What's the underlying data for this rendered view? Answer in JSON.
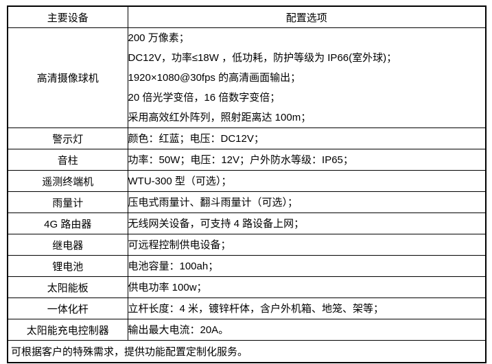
{
  "table": {
    "header": {
      "device_col": "主要设备",
      "config_col": "配置选项"
    },
    "rows": [
      {
        "device": "高清摄像球机",
        "config": [
          "200 万像素；",
          "DC12V，功率≤18W ，低功耗，防护等级为 IP66(室外球)；",
          "1920×1080@30fps 的高清画面输出；",
          "20 倍光学变倍，16 倍数字变倍；",
          "采用高效红外阵列，照射距离达 100m；"
        ]
      },
      {
        "device": "警示灯",
        "config": [
          "颜色：红蓝；电压：DC12V；"
        ]
      },
      {
        "device": "音柱",
        "config": [
          "功率：50W；电压：12V；户外防水等级：IP65；"
        ]
      },
      {
        "device": "遥测终端机",
        "config": [
          "WTU-300 型（可选）；"
        ]
      },
      {
        "device": "雨量计",
        "config": [
          "压电式雨量计、翻斗雨量计（可选）；"
        ]
      },
      {
        "device": "4G 路由器",
        "config": [
          "无线网关设备，可支持 4 路设备上网；"
        ]
      },
      {
        "device": "继电器",
        "config": [
          "可远程控制供电设备；"
        ]
      },
      {
        "device": "锂电池",
        "config": [
          "电池容量：100ah；"
        ]
      },
      {
        "device": "太阳能板",
        "config": [
          "供电功率 100w；"
        ]
      },
      {
        "device": "一体化杆",
        "config": [
          "立杆长度：4 米，镀锌杆体，含户外机箱、地笼、架等；"
        ]
      },
      {
        "device": "太阳能充电控制器",
        "config": [
          "输出最大电流：20A。"
        ]
      }
    ],
    "footer": "可根据客户的特殊需求，提供功能配置定制化服务。"
  },
  "colors": {
    "border": "#000000",
    "text": "#000000",
    "background": "#ffffff"
  }
}
